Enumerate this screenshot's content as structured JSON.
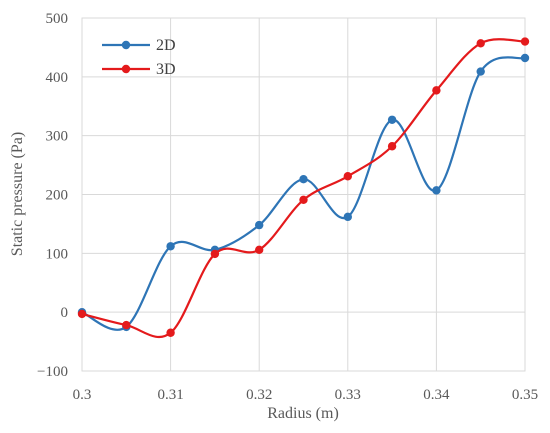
{
  "chart_data": {
    "type": "line",
    "xlabel": "Radius (m)",
    "ylabel": "Static pressure (Pa)",
    "xlim": [
      0.3,
      0.35
    ],
    "ylim": [
      -100,
      500
    ],
    "xticks": [
      0.3,
      0.31,
      0.32,
      0.33,
      0.34,
      0.35
    ],
    "yticks": [
      -100,
      0,
      100,
      200,
      300,
      400,
      500
    ],
    "xtick_labels": [
      "0.3",
      "0.31",
      "0.32",
      "0.33",
      "0.34",
      "0.35"
    ],
    "ytick_labels": [
      "−100",
      "0",
      "100",
      "200",
      "300",
      "400",
      "500"
    ],
    "grid": true,
    "legend_position": "top-left",
    "smoothed": true,
    "x": [
      0.3,
      0.305,
      0.31,
      0.315,
      0.32,
      0.325,
      0.33,
      0.335,
      0.34,
      0.345,
      0.35
    ],
    "series": [
      {
        "name": "2D",
        "color": "#2E75B6",
        "values": [
          0,
          -25,
          112,
          106,
          148,
          226,
          162,
          327,
          207,
          409,
          432
        ]
      },
      {
        "name": "3D",
        "color": "#E41A1C",
        "values": [
          -3,
          -22,
          -35,
          99,
          106,
          191,
          231,
          282,
          377,
          457,
          460
        ]
      }
    ]
  }
}
